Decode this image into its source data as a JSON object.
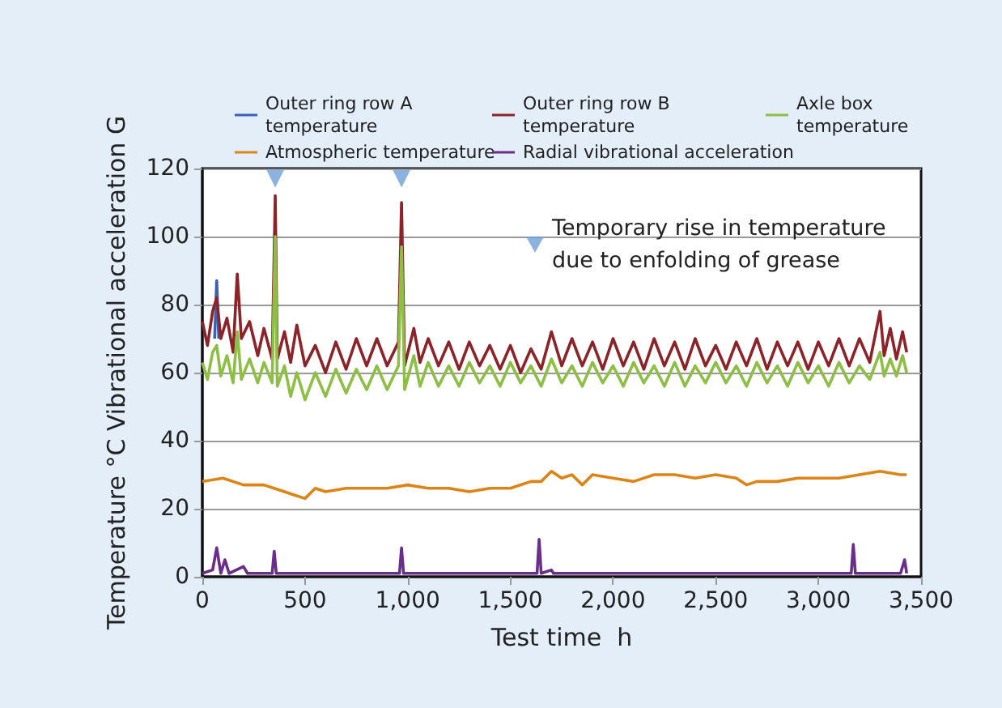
{
  "chart_data": {
    "type": "line",
    "xlabel": "Test time  h",
    "ylabel": "Temperature °C Vibrational acceleration G",
    "xlim": [
      0,
      3500
    ],
    "ylim": [
      0,
      120
    ],
    "xticks": [
      0,
      500,
      {
        "value": 1000,
        "label": "1,000"
      },
      {
        "value": 1500,
        "label": "1,500"
      },
      {
        "value": 2000,
        "label": "2,000"
      },
      {
        "value": 2500,
        "label": "2,500"
      },
      {
        "value": 3000,
        "label": "3,000"
      },
      {
        "value": 3500,
        "label": "3,500"
      }
    ],
    "yticks": [
      0,
      20,
      40,
      60,
      80,
      100,
      120
    ],
    "grid": "y",
    "legend": "top",
    "marker": "none",
    "line_style": "solid",
    "x": [
      0,
      25,
      50,
      70,
      90,
      120,
      150,
      170,
      190,
      230,
      270,
      300,
      340,
      355,
      365,
      400,
      430,
      460,
      500,
      550,
      600,
      650,
      700,
      750,
      800,
      850,
      900,
      955,
      970,
      985,
      1030,
      1060,
      1100,
      1150,
      1200,
      1250,
      1300,
      1350,
      1400,
      1450,
      1500,
      1550,
      1600,
      1650,
      1700,
      1750,
      1800,
      1850,
      1900,
      1950,
      2000,
      2050,
      2100,
      2150,
      2200,
      2250,
      2300,
      2350,
      2400,
      2450,
      2500,
      2550,
      2600,
      2650,
      2700,
      2750,
      2800,
      2850,
      2900,
      2950,
      3000,
      3050,
      3100,
      3150,
      3200,
      3250,
      3300,
      3320,
      3350,
      3380,
      3410,
      3430
    ],
    "series": [
      {
        "name": "Outer ring row A\ntemperature",
        "color": "#3a62b0",
        "x": [
          60,
          70,
          80
        ],
        "values": [
          70,
          87,
          70
        ]
      },
      {
        "name": "Outer ring row B\ntemperature",
        "color": "#8b2329",
        "values": [
          75,
          68,
          78,
          82,
          70,
          76,
          66,
          89,
          70,
          75,
          65,
          73,
          64,
          112,
          64,
          72,
          63,
          74,
          62,
          68,
          60,
          69,
          61,
          70,
          62,
          70,
          62,
          69,
          110,
          62,
          73,
          63,
          70,
          62,
          69,
          61,
          69,
          62,
          68,
          61,
          68,
          60,
          67,
          61,
          72,
          62,
          70,
          62,
          69,
          61,
          70,
          62,
          69,
          61,
          70,
          62,
          69,
          61,
          70,
          62,
          68,
          61,
          69,
          62,
          70,
          61,
          69,
          62,
          69,
          61,
          69,
          62,
          70,
          62,
          70,
          63,
          78,
          65,
          73,
          64,
          72,
          66
        ]
      },
      {
        "name": "Axle box\ntemperature",
        "color": "#8dbf45",
        "values": [
          63,
          58,
          66,
          68,
          59,
          65,
          57,
          72,
          58,
          64,
          57,
          63,
          57,
          100,
          56,
          62,
          53,
          60,
          52,
          60,
          53,
          61,
          54,
          61,
          55,
          62,
          55,
          62,
          97,
          55,
          65,
          56,
          63,
          56,
          62,
          56,
          63,
          57,
          62,
          56,
          63,
          57,
          62,
          56,
          64,
          57,
          62,
          56,
          63,
          57,
          62,
          56,
          63,
          57,
          62,
          56,
          63,
          56,
          62,
          57,
          63,
          57,
          62,
          56,
          63,
          57,
          62,
          56,
          63,
          57,
          62,
          56,
          63,
          57,
          62,
          58,
          66,
          59,
          64,
          59,
          65,
          60
        ]
      },
      {
        "name": "Atmospheric temperature",
        "color": "#dd8417",
        "x": [
          0,
          100,
          200,
          300,
          400,
          450,
          500,
          550,
          600,
          700,
          800,
          900,
          1000,
          1100,
          1200,
          1300,
          1400,
          1500,
          1600,
          1650,
          1700,
          1750,
          1800,
          1850,
          1900,
          2000,
          2100,
          2200,
          2300,
          2400,
          2500,
          2600,
          2650,
          2700,
          2800,
          2900,
          3000,
          3100,
          3200,
          3300,
          3400,
          3430
        ],
        "values": [
          28,
          29,
          27,
          27,
          25,
          24,
          23,
          26,
          25,
          26,
          26,
          26,
          27,
          26,
          26,
          25,
          26,
          26,
          28,
          28,
          31,
          29,
          30,
          27,
          30,
          29,
          28,
          30,
          30,
          29,
          30,
          29,
          27,
          28,
          28,
          29,
          29,
          29,
          30,
          31,
          30,
          30
        ]
      },
      {
        "name": "Radial vibrational acceleration",
        "color": "#6a2d8a",
        "x": [
          0,
          50,
          70,
          90,
          110,
          130,
          200,
          220,
          340,
          350,
          360,
          500,
          960,
          970,
          980,
          1400,
          1630,
          1640,
          1650,
          1700,
          1710,
          2400,
          3160,
          3170,
          3180,
          3400,
          3420,
          3430
        ],
        "values": [
          1,
          2,
          8.5,
          1,
          5,
          1,
          3,
          1,
          1,
          7.5,
          1,
          1,
          1,
          8.5,
          1,
          1,
          1,
          11,
          1,
          2,
          1,
          1,
          1,
          9.5,
          1,
          1,
          5,
          1
        ]
      },
      {
        "name": "Temporary rise in temperature\ndue to enfolding of grease",
        "type": "scatter",
        "marker": "triangle",
        "color": "#6f9fd8",
        "x": [
          355,
          970
        ],
        "values": [
          117,
          117
        ]
      }
    ]
  }
}
